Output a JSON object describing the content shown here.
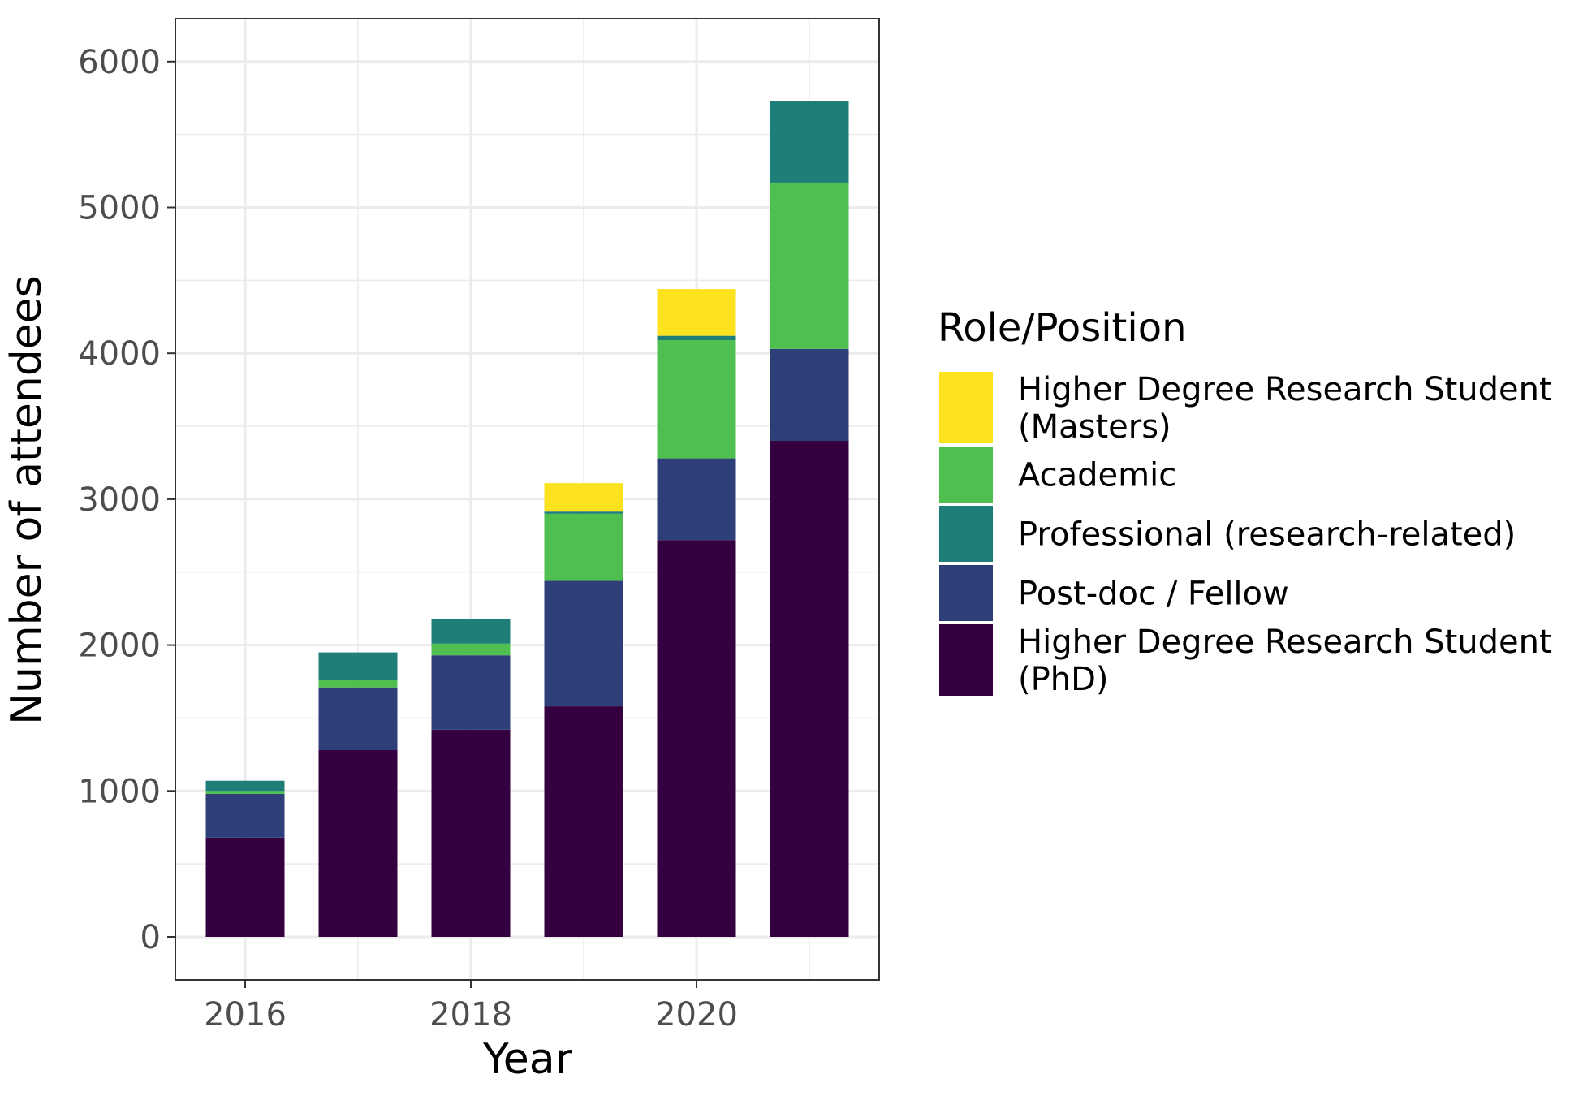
{
  "chart_data": {
    "type": "bar",
    "stacked": true,
    "xlabel": "Year",
    "ylabel": "Number of attendees",
    "categories": [
      "2016",
      "2017",
      "2018",
      "2019",
      "2020",
      "2021"
    ],
    "x_ticks": [
      "2016",
      "2018",
      "2020"
    ],
    "y_ticks": [
      "0",
      "1000",
      "2000",
      "3000",
      "4000",
      "5000",
      "6000"
    ],
    "ylim": [
      -300,
      6300
    ],
    "grid": true,
    "legend_title": "Role/Position",
    "legend_position": "right",
    "series": [
      {
        "name": "Higher Degree Research Student (PhD)",
        "legend_lines": [
          "Higher Degree Research Student",
          "(PhD)"
        ],
        "color": "#35003F",
        "values": [
          680,
          1280,
          1420,
          1580,
          2720,
          3400
        ]
      },
      {
        "name": "Post-doc / Fellow",
        "legend_lines": [
          "Post-doc / Fellow"
        ],
        "color": "#2D3E78",
        "values": [
          300,
          430,
          510,
          860,
          560,
          630
        ]
      },
      {
        "name": "Academic",
        "legend_lines": [
          "Academic"
        ],
        "color": "#4FC04F",
        "values": [
          20,
          50,
          80,
          460,
          810,
          1140
        ]
      },
      {
        "name": "Professional (research-related)",
        "legend_lines": [
          "Professional (research-related)"
        ],
        "color": "#1F7F78",
        "values": [
          70,
          190,
          170,
          15,
          30,
          560
        ]
      },
      {
        "name": "Higher Degree Research Student (Masters)",
        "legend_lines": [
          "Higher Degree Research Student",
          "(Masters)"
        ],
        "color": "#FDE21E",
        "values": [
          0,
          0,
          0,
          195,
          320,
          0
        ]
      }
    ],
    "legend_order": [
      4,
      2,
      3,
      1,
      0
    ]
  }
}
